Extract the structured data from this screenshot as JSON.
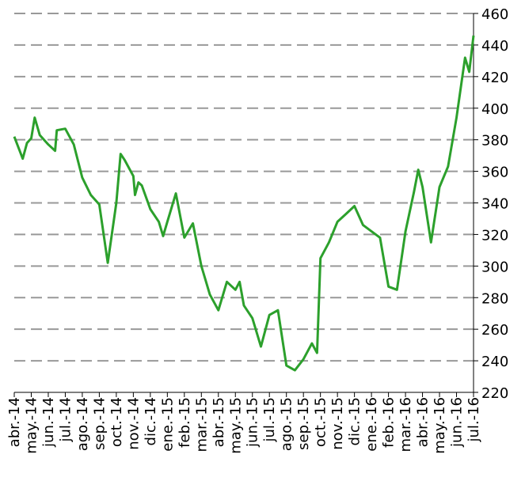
{
  "chart_data": {
    "type": "line",
    "xticks": [
      {
        "value": 0,
        "label": "abr.-14"
      },
      {
        "value": 1,
        "label": "may.-14"
      },
      {
        "value": 2,
        "label": "jun.-14"
      },
      {
        "value": 3,
        "label": "jul.-14"
      },
      {
        "value": 4,
        "label": "ago.-14"
      },
      {
        "value": 5,
        "label": "sep.-14"
      },
      {
        "value": 6,
        "label": "oct.-14"
      },
      {
        "value": 7,
        "label": "nov.-14"
      },
      {
        "value": 8,
        "label": "dic.-14"
      },
      {
        "value": 9,
        "label": "ene.-15"
      },
      {
        "value": 10,
        "label": "feb.-15"
      },
      {
        "value": 11,
        "label": "mar.-15"
      },
      {
        "value": 12,
        "label": "abr.-15"
      },
      {
        "value": 13,
        "label": "may.-15"
      },
      {
        "value": 14,
        "label": "jun.-15"
      },
      {
        "value": 15,
        "label": "jul.-15"
      },
      {
        "value": 16,
        "label": "ago.-15"
      },
      {
        "value": 17,
        "label": "sep.-15"
      },
      {
        "value": 18,
        "label": "oct.-15"
      },
      {
        "value": 19,
        "label": "nov.-15"
      },
      {
        "value": 20,
        "label": "dic.-15"
      },
      {
        "value": 21,
        "label": "ene.-16"
      },
      {
        "value": 22,
        "label": "feb.-16"
      },
      {
        "value": 23,
        "label": "mar.-16"
      },
      {
        "value": 24,
        "label": "abr.-16"
      },
      {
        "value": 25,
        "label": "may.-16"
      },
      {
        "value": 26,
        "label": "jun.-16"
      },
      {
        "value": 27,
        "label": "jul.-16"
      }
    ],
    "xlim": [
      0,
      27
    ],
    "ylim": [
      220,
      460
    ],
    "yticks": [
      220,
      240,
      260,
      280,
      300,
      320,
      340,
      360,
      380,
      400,
      420,
      440,
      460
    ],
    "grid": true,
    "series": [
      {
        "color": "#2ca02c",
        "x": [
          0,
          0.5,
          0.75,
          1,
          1.2,
          1.5,
          2,
          2.4,
          2.5,
          3,
          3.5,
          4,
          4.5,
          5,
          5.5,
          6,
          6.25,
          6.5,
          7,
          7.1,
          7.3,
          7.5,
          8,
          8.5,
          8.75,
          9,
          9.5,
          10,
          10.5,
          11,
          11.5,
          12,
          12.5,
          13,
          13.25,
          13.5,
          14,
          14.5,
          15,
          15.5,
          16,
          16.5,
          17,
          17.5,
          17.8,
          18,
          18.5,
          19,
          19.5,
          20,
          20.5,
          21,
          21.5,
          22,
          22.5,
          23,
          23.5,
          23.75,
          24,
          24.5,
          25,
          25.5,
          26,
          26.5,
          26.75,
          27
        ],
        "values": [
          382,
          368,
          378,
          381,
          394,
          383,
          377,
          373,
          386,
          387,
          377,
          356,
          345,
          339,
          302,
          340,
          371,
          367,
          357,
          345,
          353,
          351,
          336,
          328,
          319,
          328,
          346,
          318,
          327,
          300,
          282,
          272,
          290,
          285,
          290,
          275,
          267,
          249,
          269,
          272,
          237,
          234,
          241,
          251,
          245,
          305,
          315,
          328,
          333,
          338,
          326,
          322,
          318,
          287,
          285,
          322,
          347,
          361,
          350,
          315,
          350,
          363,
          394,
          432,
          423,
          446
        ]
      }
    ]
  }
}
